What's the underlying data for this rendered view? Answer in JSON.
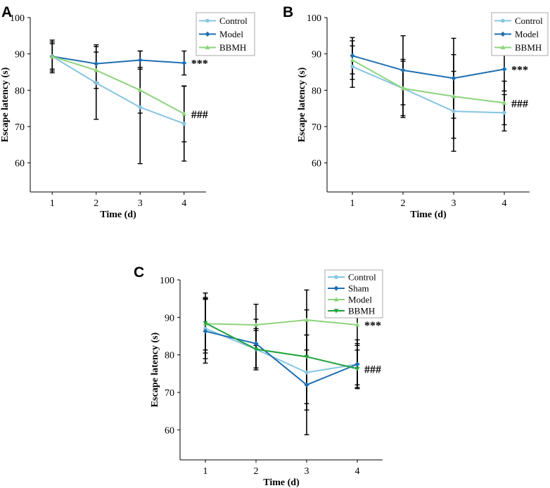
{
  "chart_data": [
    {
      "panel": "A",
      "type": "line",
      "xlabel": "Time (d)",
      "ylabel": "Escape latency (s)",
      "categories": [
        "1",
        "2",
        "3",
        "4"
      ],
      "xlim": [
        0.5,
        4.5
      ],
      "ylim": [
        52,
        100
      ],
      "yticks": [
        60,
        70,
        80,
        90,
        100
      ],
      "legend_position": "top-right",
      "series": [
        {
          "name": "Control",
          "color": "#86c5e2",
          "marker": "circle",
          "values": [
            89.3,
            82.0,
            75.3,
            70.8
          ],
          "errors": [
            4.0,
            10.0,
            15.5,
            10.3
          ]
        },
        {
          "name": "Model",
          "color": "#1f6fb2",
          "marker": "diamond",
          "values": [
            89.3,
            87.3,
            88.3,
            87.5
          ],
          "errors": [
            4.5,
            5.2,
            2.5,
            3.3
          ]
        },
        {
          "name": "BBMH",
          "color": "#8ed47e",
          "marker": "triangle",
          "values": [
            89.3,
            85.5,
            80.0,
            73.5
          ],
          "errors": [
            3.5,
            5.0,
            6.3,
            7.7
          ]
        }
      ],
      "annotations": [
        {
          "text": "***",
          "series": "Model",
          "x": "4"
        },
        {
          "text": "###",
          "series": "BBMH",
          "x": "4"
        }
      ]
    },
    {
      "panel": "B",
      "type": "line",
      "xlabel": "Time (d)",
      "ylabel": "Escape latency (s)",
      "categories": [
        "1",
        "2",
        "3",
        "4"
      ],
      "xlim": [
        0.5,
        4.5
      ],
      "ylim": [
        52,
        100
      ],
      "yticks": [
        60,
        70,
        80,
        90,
        100
      ],
      "legend_position": "top-right",
      "series": [
        {
          "name": "Control",
          "color": "#86c5e2",
          "marker": "circle",
          "values": [
            86.5,
            80.5,
            74.2,
            73.8
          ],
          "errors": [
            5.7,
            8.0,
            11.0,
            5.0
          ]
        },
        {
          "name": "Model",
          "color": "#1f6fb2",
          "marker": "diamond",
          "values": [
            89.5,
            85.5,
            83.3,
            85.8
          ],
          "errors": [
            5.0,
            9.5,
            11.0,
            6.0
          ]
        },
        {
          "name": "BBMH",
          "color": "#8ed47e",
          "marker": "triangle",
          "values": [
            88.3,
            80.5,
            78.3,
            76.5
          ],
          "errors": [
            5.3,
            7.5,
            11.5,
            6.0
          ]
        }
      ],
      "annotations": [
        {
          "text": "***",
          "series": "Model",
          "x": "4"
        },
        {
          "text": "###",
          "series": "BBMH",
          "x": "4"
        }
      ]
    },
    {
      "panel": "C",
      "type": "line",
      "xlabel": "Time (d)",
      "ylabel": "Escape latency (s)",
      "categories": [
        "1",
        "2",
        "3",
        "4"
      ],
      "xlim": [
        0.5,
        4.5
      ],
      "ylim": [
        52,
        100
      ],
      "yticks": [
        60,
        70,
        80,
        90,
        100
      ],
      "legend_position": "top-right",
      "series": [
        {
          "name": "Control",
          "color": "#86c5e2",
          "marker": "circle",
          "values": [
            87.0,
            81.5,
            75.3,
            77.5
          ],
          "errors": [
            8.0,
            5.5,
            10.0,
            5.5
          ]
        },
        {
          "name": "Sham",
          "color": "#1f6fb2",
          "marker": "diamond",
          "values": [
            86.3,
            83.0,
            72.0,
            77.5
          ],
          "errors": [
            8.5,
            6.5,
            13.3,
            6.5
          ]
        },
        {
          "name": "Model",
          "color": "#8ed47e",
          "marker": "triangle",
          "values": [
            88.3,
            88.0,
            89.3,
            88.0
          ],
          "errors": [
            7.0,
            5.5,
            8.0,
            5.5
          ]
        },
        {
          "name": "BBMH",
          "color": "#1fa33a",
          "marker": "triangle-down",
          "values": [
            88.5,
            81.5,
            79.5,
            76.3
          ],
          "errors": [
            8.0,
            5.0,
            12.5,
            5.0
          ]
        }
      ],
      "annotations": [
        {
          "text": "***",
          "series": "Model",
          "x": "4"
        },
        {
          "text": "###",
          "series": "BBMH",
          "x": "4"
        }
      ]
    }
  ]
}
